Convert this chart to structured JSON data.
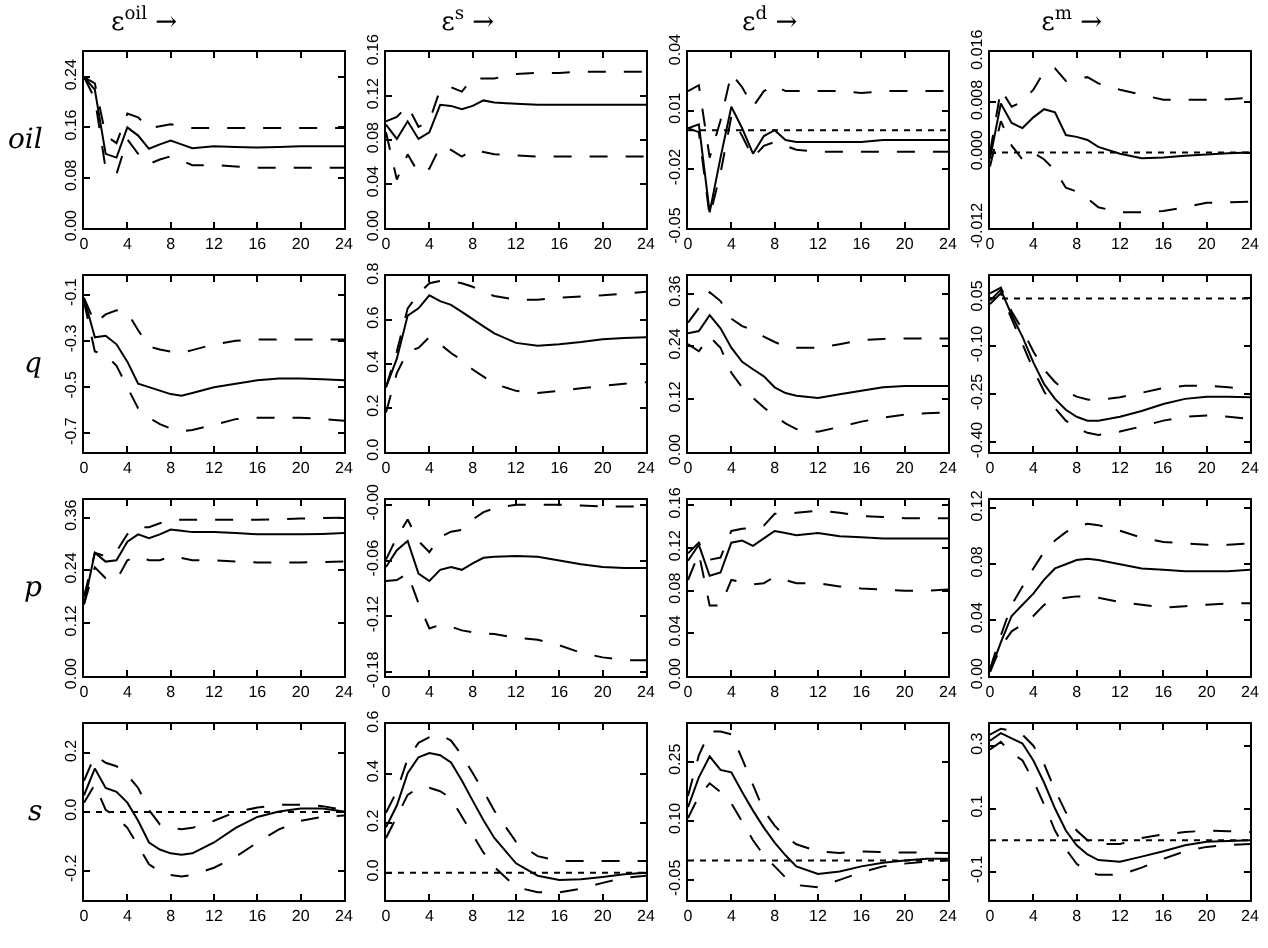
{
  "chart_data": [
    {
      "type": "line",
      "title": "ε$^{oil}$ →",
      "ylabel": "oil",
      "x": [
        0,
        1,
        2,
        3,
        4,
        5,
        6,
        7,
        8,
        9,
        10,
        12,
        14,
        16,
        18,
        20,
        22,
        24
      ],
      "xlim": [
        0,
        24
      ],
      "xticks": [
        0,
        4,
        8,
        12,
        16,
        20,
        24
      ],
      "ylim": [
        0,
        0.28
      ],
      "yticks": [
        {
          "value": 0,
          "label": "0.00"
        },
        0.08,
        0.16,
        0.24
      ],
      "series": [
        {
          "color": "#000000",
          "line_style": "solid",
          "values": [
            0.24,
            0.22,
            0.118,
            0.112,
            0.16,
            0.147,
            0.126,
            0.133,
            0.139,
            0.133,
            0.127,
            0.13,
            0.129,
            0.128,
            0.129,
            0.13,
            0.13,
            0.13
          ]
        },
        {
          "color": "#000000",
          "line_style": "dashed",
          "values": [
            0.24,
            0.23,
            0.147,
            0.135,
            0.182,
            0.176,
            0.159,
            0.162,
            0.165,
            0.162,
            0.159,
            0.159,
            0.159,
            0.159,
            0.159,
            0.159,
            0.159,
            0.159
          ]
        },
        {
          "color": "#000000",
          "line_style": "dashed",
          "values": [
            0.24,
            0.206,
            0.094,
            0.086,
            0.141,
            0.118,
            0.102,
            0.109,
            0.114,
            0.107,
            0.1,
            0.1,
            0.098,
            0.096,
            0.096,
            0.096,
            0.096,
            0.096
          ]
        }
      ]
    },
    {
      "type": "line",
      "title": "ε$^{s}$ →",
      "x": [
        0,
        1,
        2,
        3,
        4,
        5,
        6,
        7,
        8,
        9,
        10,
        12,
        14,
        16,
        18,
        20,
        22,
        24
      ],
      "xlim": [
        0,
        24
      ],
      "xticks": [
        0,
        4,
        8,
        12,
        16,
        20,
        24
      ],
      "ylim": [
        0,
        0.16
      ],
      "yticks": [
        {
          "value": 0,
          "label": "0.00"
        },
        0.04,
        0.08,
        0.12,
        0.16
      ],
      "series": [
        {
          "color": "#000000",
          "line_style": "solid",
          "values": [
            0.094,
            0.081,
            0.097,
            0.081,
            0.087,
            0.112,
            0.111,
            0.108,
            0.111,
            0.116,
            0.114,
            0.113,
            0.112,
            0.112,
            0.112,
            0.112,
            0.112,
            0.112
          ]
        },
        {
          "color": "#000000",
          "line_style": "dashed",
          "values": [
            0.097,
            0.101,
            0.111,
            0.092,
            0.097,
            0.126,
            0.128,
            0.124,
            0.136,
            0.136,
            0.136,
            0.14,
            0.141,
            0.141,
            0.142,
            0.142,
            0.142,
            0.142
          ]
        },
        {
          "color": "#000000",
          "line_style": "dashed",
          "values": [
            0.087,
            0.044,
            0.067,
            0.05,
            0.054,
            0.074,
            0.071,
            0.065,
            0.071,
            0.069,
            0.067,
            0.066,
            0.065,
            0.065,
            0.065,
            0.065,
            0.065,
            0.065
          ]
        }
      ]
    },
    {
      "type": "line",
      "title": "ε$^{d}$ →",
      "x": [
        0,
        1,
        2,
        3,
        4,
        5,
        6,
        7,
        8,
        9,
        10,
        12,
        14,
        16,
        18,
        20,
        22,
        24
      ],
      "xlim": [
        0,
        24
      ],
      "xticks": [
        0,
        4,
        8,
        12,
        16,
        20,
        24
      ],
      "ylim": [
        -0.05,
        0.04
      ],
      "yticks": [
        -0.05,
        -0.02,
        0.01,
        0.04
      ],
      "ref_lines": [
        {
          "axis": "y",
          "value": 0,
          "color": "#000000",
          "line_style": "dotted"
        }
      ],
      "series": [
        {
          "color": "#000000",
          "line_style": "solid",
          "values": [
            0.001,
            0.003,
            -0.042,
            -0.014,
            0.012,
            0.001,
            -0.012,
            -0.003,
            0,
            -0.005,
            -0.006,
            -0.006,
            -0.006,
            -0.006,
            -0.005,
            -0.005,
            -0.005,
            -0.005
          ]
        },
        {
          "color": "#000000",
          "line_style": "dashed",
          "values": [
            0.02,
            0.023,
            -0.014,
            0.005,
            0.029,
            0.022,
            0.012,
            0.02,
            0.023,
            0.02,
            0.02,
            0.02,
            0.02,
            0.019,
            0.02,
            0.02,
            0.02,
            0.02
          ]
        },
        {
          "color": "#000000",
          "line_style": "dashed",
          "values": [
            0.001,
            -0.001,
            -0.044,
            -0.022,
            0.007,
            -0.003,
            -0.014,
            -0.008,
            -0.006,
            -0.008,
            -0.01,
            -0.011,
            -0.011,
            -0.011,
            -0.011,
            -0.011,
            -0.011,
            -0.011
          ]
        }
      ]
    },
    {
      "type": "line",
      "title": "ε$^{m}$ →",
      "x": [
        0,
        1,
        2,
        3,
        4,
        5,
        6,
        7,
        8,
        9,
        10,
        12,
        14,
        16,
        18,
        20,
        22,
        24
      ],
      "xlim": [
        0,
        24
      ],
      "xticks": [
        0,
        4,
        8,
        12,
        16,
        20,
        24
      ],
      "ylim": [
        -0.012,
        0.016
      ],
      "yticks": [
        -0.012,
        {
          "value": 0,
          "label": "0.000"
        },
        0.008,
        0.016
      ],
      "ref_lines": [
        {
          "axis": "y",
          "value": 0,
          "color": "#000000",
          "line_style": "dotted"
        }
      ],
      "series": [
        {
          "color": "#000000",
          "line_style": "solid",
          "values": [
            -0.001,
            0.0078,
            0.0047,
            0.0039,
            0.0056,
            0.0069,
            0.0064,
            0.0028,
            0.0025,
            0.002,
            0.0009,
            -0.0002,
            -0.0009,
            -0.0008,
            -0.0005,
            -0.0003,
            -0.0001,
            0
          ]
        },
        {
          "color": "#000000",
          "line_style": "dashed",
          "values": [
            0,
            0.01,
            0.0073,
            0.0081,
            0.01,
            0.0129,
            0.0134,
            0.0114,
            0.0118,
            0.012,
            0.011,
            0.01,
            0.0092,
            0.0084,
            0.0084,
            0.0084,
            0.0085,
            0.0087
          ]
        },
        {
          "color": "#000000",
          "line_style": "dashed",
          "values": [
            -0.0022,
            0.005,
            0.0011,
            -0.0011,
            0,
            -0.0011,
            -0.0028,
            -0.0056,
            -0.0062,
            -0.0073,
            -0.0087,
            -0.0095,
            -0.0095,
            -0.0093,
            -0.0087,
            -0.008,
            -0.0079,
            -0.0078
          ]
        }
      ]
    },
    {
      "type": "line",
      "ylabel": "q",
      "x": [
        0,
        1,
        2,
        3,
        4,
        5,
        6,
        7,
        8,
        9,
        10,
        12,
        14,
        16,
        18,
        20,
        22,
        24
      ],
      "xlim": [
        0,
        24
      ],
      "xticks": [
        0,
        4,
        8,
        12,
        16,
        20,
        24
      ],
      "ylim": [
        -0.78,
        -0.02
      ],
      "yticks": [
        -0.7,
        -0.5,
        -0.3,
        -0.1
      ],
      "series": [
        {
          "color": "#000000",
          "line_style": "solid",
          "values": [
            -0.115,
            -0.285,
            -0.278,
            -0.315,
            -0.39,
            -0.485,
            -0.5,
            -0.515,
            -0.53,
            -0.537,
            -0.525,
            -0.5,
            -0.485,
            -0.47,
            -0.463,
            -0.463,
            -0.466,
            -0.47
          ]
        },
        {
          "color": "#000000",
          "line_style": "dashed",
          "values": [
            -0.115,
            -0.223,
            -0.186,
            -0.168,
            -0.177,
            -0.254,
            -0.325,
            -0.337,
            -0.346,
            -0.352,
            -0.34,
            -0.315,
            -0.3,
            -0.294,
            -0.294,
            -0.294,
            -0.294,
            -0.294
          ]
        },
        {
          "color": "#000000",
          "line_style": "dashed",
          "values": [
            -0.13,
            -0.346,
            -0.36,
            -0.408,
            -0.5,
            -0.592,
            -0.632,
            -0.66,
            -0.678,
            -0.69,
            -0.685,
            -0.663,
            -0.638,
            -0.632,
            -0.632,
            -0.632,
            -0.638,
            -0.645
          ]
        }
      ]
    },
    {
      "type": "line",
      "x": [
        0,
        1,
        2,
        3,
        4,
        5,
        6,
        7,
        8,
        9,
        10,
        12,
        14,
        16,
        18,
        20,
        22,
        24
      ],
      "xlim": [
        0,
        24
      ],
      "xticks": [
        0,
        4,
        8,
        12,
        16,
        20,
        24
      ],
      "ylim": [
        0,
        0.8
      ],
      "yticks": [
        {
          "value": 0,
          "label": "0.0"
        },
        0.2,
        0.4,
        0.6,
        0.8
      ],
      "series": [
        {
          "color": "#000000",
          "line_style": "solid",
          "values": [
            0.294,
            0.424,
            0.62,
            0.653,
            0.712,
            0.686,
            0.669,
            0.637,
            0.604,
            0.571,
            0.539,
            0.496,
            0.483,
            0.49,
            0.5,
            0.513,
            0.518,
            0.522
          ]
        },
        {
          "color": "#000000",
          "line_style": "dashed",
          "values": [
            0.294,
            0.457,
            0.653,
            0.718,
            0.767,
            0.777,
            0.777,
            0.767,
            0.751,
            0.725,
            0.709,
            0.692,
            0.692,
            0.702,
            0.707,
            0.712,
            0.72,
            0.728
          ]
        },
        {
          "color": "#000000",
          "line_style": "dashed",
          "values": [
            0.18,
            0.359,
            0.457,
            0.473,
            0.522,
            0.49,
            0.45,
            0.418,
            0.375,
            0.343,
            0.31,
            0.278,
            0.268,
            0.278,
            0.29,
            0.3,
            0.31,
            0.317
          ]
        }
      ]
    },
    {
      "type": "line",
      "x": [
        0,
        1,
        2,
        3,
        4,
        5,
        6,
        7,
        8,
        9,
        10,
        12,
        14,
        16,
        18,
        20,
        22,
        24
      ],
      "xlim": [
        0,
        24
      ],
      "xticks": [
        0,
        4,
        8,
        12,
        16,
        20,
        24
      ],
      "ylim": [
        0,
        0.4
      ],
      "yticks": [
        {
          "value": 0,
          "label": "0.00"
        },
        0.12,
        0.24,
        0.36
      ],
      "series": [
        {
          "color": "#000000",
          "line_style": "solid",
          "values": [
            0.27,
            0.275,
            0.311,
            0.281,
            0.237,
            0.205,
            0.188,
            0.172,
            0.147,
            0.134,
            0.128,
            0.123,
            0.131,
            0.139,
            0.147,
            0.15,
            0.15,
            0.15
          ]
        },
        {
          "color": "#000000",
          "line_style": "dashed",
          "values": [
            0.294,
            0.327,
            0.363,
            0.343,
            0.303,
            0.286,
            0.278,
            0.262,
            0.25,
            0.24,
            0.237,
            0.237,
            0.245,
            0.254,
            0.257,
            0.258,
            0.258,
            0.258
          ]
        },
        {
          "color": "#000000",
          "line_style": "dashed",
          "values": [
            0.245,
            0.229,
            0.262,
            0.237,
            0.18,
            0.147,
            0.123,
            0.101,
            0.082,
            0.065,
            0.052,
            0.046,
            0.057,
            0.069,
            0.078,
            0.085,
            0.088,
            0.09
          ]
        }
      ]
    },
    {
      "type": "line",
      "x": [
        0,
        1,
        2,
        3,
        4,
        5,
        6,
        7,
        8,
        9,
        10,
        12,
        14,
        16,
        18,
        20,
        22,
        24
      ],
      "xlim": [
        0,
        24
      ],
      "xticks": [
        0,
        4,
        8,
        12,
        16,
        20,
        24
      ],
      "ylim": [
        -0.43,
        0.12
      ],
      "yticks": [
        {
          "value": -0.4,
          "label": "-0.40"
        },
        -0.25,
        {
          "value": -0.1,
          "label": "-0.10"
        },
        0.05
      ],
      "ref_lines": [
        {
          "axis": "y",
          "value": 0.05,
          "color": "#000000",
          "line_style": "dotted"
        }
      ],
      "series": [
        {
          "color": "#000000",
          "line_style": "solid",
          "values": [
            0.043,
            0.077,
            -0.002,
            -0.07,
            -0.15,
            -0.218,
            -0.264,
            -0.298,
            -0.32,
            -0.332,
            -0.332,
            -0.32,
            -0.302,
            -0.28,
            -0.264,
            -0.257,
            -0.257,
            -0.259
          ]
        },
        {
          "color": "#000000",
          "line_style": "dashed",
          "values": [
            0.066,
            0.084,
            0.009,
            -0.048,
            -0.116,
            -0.173,
            -0.211,
            -0.241,
            -0.257,
            -0.266,
            -0.268,
            -0.259,
            -0.245,
            -0.23,
            -0.223,
            -0.223,
            -0.228,
            -0.234
          ]
        },
        {
          "color": "#000000",
          "line_style": "dashed",
          "values": [
            0.032,
            0.066,
            -0.014,
            -0.093,
            -0.173,
            -0.241,
            -0.293,
            -0.332,
            -0.355,
            -0.37,
            -0.377,
            -0.366,
            -0.35,
            -0.332,
            -0.32,
            -0.316,
            -0.32,
            -0.327
          ]
        }
      ]
    },
    {
      "type": "line",
      "ylabel": "p",
      "x": [
        0,
        1,
        2,
        3,
        4,
        5,
        6,
        7,
        8,
        9,
        10,
        12,
        14,
        16,
        18,
        20,
        22,
        24
      ],
      "xlim": [
        0,
        24
      ],
      "xticks": [
        0,
        4,
        8,
        12,
        16,
        20,
        24
      ],
      "ylim": [
        0,
        0.4
      ],
      "yticks": [
        {
          "value": 0,
          "label": "0.00"
        },
        0.12,
        0.24,
        0.36
      ],
      "series": [
        {
          "color": "#000000",
          "line_style": "solid",
          "values": [
            0.163,
            0.28,
            0.26,
            0.263,
            0.305,
            0.322,
            0.313,
            0.322,
            0.333,
            0.33,
            0.327,
            0.327,
            0.325,
            0.322,
            0.322,
            0.322,
            0.323,
            0.325
          ]
        },
        {
          "color": "#000000",
          "line_style": "dashed",
          "values": [
            0.18,
            0.28,
            0.272,
            0.283,
            0.322,
            0.338,
            0.338,
            0.347,
            0.355,
            0.355,
            0.355,
            0.355,
            0.355,
            0.355,
            0.356,
            0.358,
            0.359,
            0.36
          ]
        },
        {
          "color": "#000000",
          "line_style": "dashed",
          "values": [
            0.163,
            0.247,
            0.222,
            0.218,
            0.263,
            0.272,
            0.263,
            0.263,
            0.272,
            0.268,
            0.263,
            0.263,
            0.26,
            0.258,
            0.258,
            0.258,
            0.259,
            0.26
          ]
        }
      ]
    },
    {
      "type": "line",
      "x": [
        0,
        1,
        2,
        3,
        4,
        5,
        6,
        7,
        8,
        9,
        10,
        12,
        14,
        16,
        18,
        20,
        22,
        24
      ],
      "xlim": [
        0,
        24
      ],
      "xticks": [
        0,
        4,
        8,
        12,
        16,
        20,
        24
      ],
      "ylim": [
        -0.184,
        0.005
      ],
      "yticks": [
        -0.18,
        -0.12,
        -0.06,
        {
          "value": 0,
          "label": "-0.00"
        }
      ],
      "series": [
        {
          "color": "#000000",
          "line_style": "solid",
          "values": [
            -0.067,
            -0.049,
            -0.039,
            -0.074,
            -0.082,
            -0.07,
            -0.067,
            -0.07,
            -0.063,
            -0.057,
            -0.056,
            -0.055,
            -0.056,
            -0.06,
            -0.064,
            -0.067,
            -0.068,
            -0.068
          ]
        },
        {
          "color": "#000000",
          "line_style": "dashed",
          "values": [
            -0.059,
            -0.035,
            -0.016,
            -0.039,
            -0.051,
            -0.035,
            -0.029,
            -0.027,
            -0.016,
            -0.008,
            -0.004,
            0,
            0,
            0,
            -0.001,
            -0.002,
            -0.002,
            -0.002
          ]
        },
        {
          "color": "#000000",
          "line_style": "dashed",
          "values": [
            -0.082,
            -0.081,
            -0.074,
            -0.106,
            -0.133,
            -0.129,
            -0.131,
            -0.135,
            -0.137,
            -0.138,
            -0.139,
            -0.143,
            -0.145,
            -0.151,
            -0.159,
            -0.164,
            -0.167,
            -0.167
          ]
        }
      ]
    },
    {
      "type": "line",
      "x": [
        0,
        1,
        2,
        3,
        4,
        5,
        6,
        7,
        8,
        9,
        10,
        12,
        14,
        16,
        18,
        20,
        22,
        24
      ],
      "xlim": [
        0,
        24
      ],
      "xticks": [
        0,
        4,
        8,
        12,
        16,
        20,
        24
      ],
      "ylim": [
        0,
        0.165
      ],
      "yticks": [
        {
          "value": 0,
          "label": "0.00"
        },
        0.04,
        0.08,
        0.12,
        0.16
      ],
      "series": [
        {
          "color": "#000000",
          "line_style": "solid",
          "values": [
            0.108,
            0.123,
            0.094,
            0.097,
            0.125,
            0.127,
            0.122,
            0.129,
            0.136,
            0.134,
            0.132,
            0.134,
            0.131,
            0.13,
            0.129,
            0.129,
            0.129,
            0.129
          ]
        },
        {
          "color": "#000000",
          "line_style": "dashed",
          "values": [
            0.115,
            0.125,
            0.109,
            0.111,
            0.136,
            0.138,
            0.139,
            0.141,
            0.152,
            0.152,
            0.153,
            0.155,
            0.153,
            0.15,
            0.149,
            0.148,
            0.148,
            0.148
          ]
        },
        {
          "color": "#000000",
          "line_style": "dashed",
          "values": [
            0.09,
            0.115,
            0.066,
            0.066,
            0.09,
            0.088,
            0.086,
            0.087,
            0.093,
            0.09,
            0.087,
            0.087,
            0.084,
            0.082,
            0.081,
            0.08,
            0.08,
            0.081
          ]
        }
      ]
    },
    {
      "type": "line",
      "x": [
        0,
        1,
        2,
        3,
        4,
        5,
        6,
        7,
        8,
        9,
        10,
        12,
        14,
        16,
        18,
        20,
        22,
        24
      ],
      "xlim": [
        0,
        24
      ],
      "xticks": [
        0,
        4,
        8,
        12,
        16,
        20,
        24
      ],
      "ylim": [
        0,
        0.126
      ],
      "yticks": [
        {
          "value": 0,
          "label": "0.00"
        },
        0.04,
        0.08,
        0.12
      ],
      "series": [
        {
          "color": "#000000",
          "line_style": "solid",
          "values": [
            0.003,
            0.024,
            0.043,
            0.051,
            0.059,
            0.069,
            0.077,
            0.08,
            0.083,
            0.084,
            0.083,
            0.08,
            0.077,
            0.076,
            0.075,
            0.075,
            0.075,
            0.076
          ]
        },
        {
          "color": "#000000",
          "line_style": "dashed",
          "values": [
            0.005,
            0.029,
            0.051,
            0.064,
            0.077,
            0.089,
            0.097,
            0.103,
            0.107,
            0.109,
            0.108,
            0.104,
            0.099,
            0.096,
            0.095,
            0.094,
            0.094,
            0.095
          ]
        },
        {
          "color": "#000000",
          "line_style": "dashed",
          "values": [
            0.003,
            0.021,
            0.032,
            0.037,
            0.043,
            0.051,
            0.055,
            0.056,
            0.057,
            0.057,
            0.056,
            0.053,
            0.051,
            0.049,
            0.05,
            0.051,
            0.052,
            0.052
          ]
        }
      ]
    },
    {
      "type": "line",
      "ylabel": "s",
      "x": [
        0,
        1,
        2,
        3,
        4,
        5,
        6,
        7,
        8,
        9,
        10,
        12,
        14,
        16,
        18,
        20,
        22,
        24
      ],
      "xlim": [
        0,
        24
      ],
      "xticks": [
        0,
        4,
        8,
        12,
        16,
        20,
        24
      ],
      "ylim": [
        -0.3,
        0.3
      ],
      "yticks": [
        -0.2,
        {
          "value": 0,
          "label": "0.0"
        },
        0.2
      ],
      "ref_lines": [
        {
          "axis": "y",
          "value": 0,
          "color": "#000000",
          "line_style": "dotted"
        }
      ],
      "series": [
        {
          "color": "#000000",
          "line_style": "solid",
          "values": [
            0.057,
            0.148,
            0.082,
            0.069,
            0.032,
            -0.03,
            -0.104,
            -0.128,
            -0.141,
            -0.146,
            -0.141,
            -0.104,
            -0.054,
            -0.017,
            0.002,
            0.012,
            0.012,
            0.002
          ]
        },
        {
          "color": "#000000",
          "line_style": "dashed",
          "values": [
            0.106,
            0.193,
            0.168,
            0.156,
            0.126,
            0.082,
            0.007,
            -0.042,
            -0.054,
            -0.059,
            -0.054,
            -0.03,
            0,
            0.015,
            0.025,
            0.025,
            0.02,
            0.007
          ]
        },
        {
          "color": "#000000",
          "line_style": "dashed",
          "values": [
            0.032,
            0.094,
            0.007,
            -0.017,
            -0.054,
            -0.116,
            -0.178,
            -0.203,
            -0.215,
            -0.22,
            -0.215,
            -0.19,
            -0.153,
            -0.104,
            -0.059,
            -0.03,
            -0.017,
            -0.012
          ]
        }
      ]
    },
    {
      "type": "line",
      "x": [
        0,
        1,
        2,
        3,
        4,
        5,
        6,
        7,
        8,
        9,
        10,
        12,
        14,
        16,
        18,
        20,
        22,
        24
      ],
      "xlim": [
        0,
        24
      ],
      "xticks": [
        0,
        4,
        8,
        12,
        16,
        20,
        24
      ],
      "ylim": [
        -0.11,
        0.6
      ],
      "yticks": [
        {
          "value": 0,
          "label": "0.0"
        },
        0.2,
        0.4,
        0.6
      ],
      "ref_lines": [
        {
          "axis": "y",
          "value": 0,
          "color": "#000000",
          "line_style": "dotted"
        }
      ],
      "series": [
        {
          "color": "#000000",
          "line_style": "solid",
          "values": [
            0.183,
            0.271,
            0.402,
            0.466,
            0.483,
            0.474,
            0.445,
            0.372,
            0.291,
            0.212,
            0.14,
            0.038,
            -0.012,
            -0.029,
            -0.026,
            -0.017,
            -0.006,
            0
          ]
        },
        {
          "color": "#000000",
          "line_style": "dashed",
          "values": [
            0.242,
            0.329,
            0.46,
            0.524,
            0.547,
            0.556,
            0.533,
            0.474,
            0.402,
            0.329,
            0.25,
            0.125,
            0.067,
            0.047,
            0.047,
            0.047,
            0.047,
            0.047
          ]
        },
        {
          "color": "#000000",
          "line_style": "dashed",
          "values": [
            0.14,
            0.227,
            0.314,
            0.343,
            0.343,
            0.329,
            0.3,
            0.227,
            0.154,
            0.081,
            0.023,
            -0.058,
            -0.079,
            -0.079,
            -0.064,
            -0.041,
            -0.02,
            -0.012
          ]
        }
      ]
    },
    {
      "type": "line",
      "x": [
        0,
        1,
        2,
        3,
        4,
        5,
        6,
        7,
        8,
        9,
        10,
        12,
        14,
        16,
        18,
        20,
        22,
        24
      ],
      "xlim": [
        0,
        24
      ],
      "xticks": [
        0,
        4,
        8,
        12,
        16,
        20,
        24
      ],
      "ylim": [
        -0.1,
        0.345
      ],
      "yticks": [
        -0.05,
        {
          "value": 0.1,
          "label": "0.10"
        },
        0.25
      ],
      "ref_lines": [
        {
          "axis": "y",
          "value": 0,
          "color": "#000000",
          "line_style": "dotted"
        }
      ],
      "series": [
        {
          "color": "#000000",
          "line_style": "solid",
          "values": [
            0.135,
            0.21,
            0.263,
            0.229,
            0.223,
            0.173,
            0.126,
            0.083,
            0.045,
            0.013,
            -0.015,
            -0.034,
            -0.028,
            -0.015,
            -0.006,
            0,
            0.004,
            0.004
          ]
        },
        {
          "color": "#000000",
          "line_style": "dashed",
          "values": [
            0.163,
            0.266,
            0.326,
            0.326,
            0.319,
            0.257,
            0.191,
            0.126,
            0.088,
            0.06,
            0.041,
            0.023,
            0.019,
            0.023,
            0.021,
            0.02,
            0.02,
            0.019
          ]
        },
        {
          "color": "#000000",
          "line_style": "dashed",
          "values": [
            0.107,
            0.163,
            0.195,
            0.173,
            0.144,
            0.098,
            0.051,
            0.013,
            -0.015,
            -0.043,
            -0.062,
            -0.068,
            -0.049,
            -0.03,
            -0.015,
            -0.008,
            -0.003,
            0
          ]
        }
      ]
    },
    {
      "type": "line",
      "x": [
        0,
        1,
        2,
        3,
        4,
        5,
        6,
        7,
        8,
        9,
        10,
        12,
        14,
        16,
        18,
        20,
        22,
        24
      ],
      "xlim": [
        0,
        24
      ],
      "xticks": [
        0,
        4,
        8,
        12,
        16,
        20,
        24
      ],
      "ylim": [
        -0.19,
        0.37
      ],
      "yticks": [
        -0.1,
        0.1,
        0.3
      ],
      "ref_lines": [
        {
          "axis": "y",
          "value": 0,
          "color": "#000000",
          "line_style": "dotted"
        }
      ],
      "series": [
        {
          "color": "#000000",
          "line_style": "solid",
          "values": [
            0.317,
            0.341,
            0.324,
            0.308,
            0.254,
            0.183,
            0.101,
            0.031,
            -0.016,
            -0.045,
            -0.063,
            -0.068,
            -0.052,
            -0.035,
            -0.016,
            -0.005,
            -0.002,
            0
          ]
        },
        {
          "color": "#000000",
          "line_style": "dashed",
          "values": [
            0.336,
            0.355,
            0.348,
            0.336,
            0.301,
            0.242,
            0.16,
            0.089,
            0.031,
            0,
            -0.012,
            -0.012,
            0.007,
            0.019,
            0.026,
            0.031,
            0.029,
            0.026
          ]
        },
        {
          "color": "#000000",
          "line_style": "dashed",
          "values": [
            0.289,
            0.313,
            0.277,
            0.254,
            0.19,
            0.113,
            0.031,
            -0.028,
            -0.075,
            -0.099,
            -0.11,
            -0.11,
            -0.087,
            -0.059,
            -0.035,
            -0.021,
            -0.015,
            -0.012
          ]
        }
      ]
    }
  ]
}
